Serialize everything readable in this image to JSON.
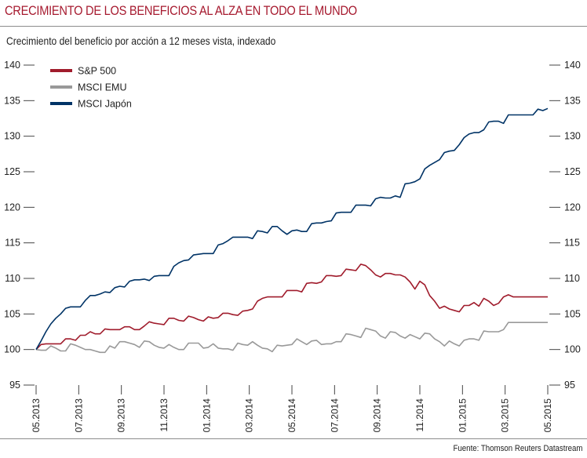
{
  "header": {
    "title": "CRECIMIENTO DE LOS BENEFICIOS AL ALZA EN TODO EL MUNDO",
    "subtitle": "Crecimiento del beneficio por acción a 12 meses vista, indexado"
  },
  "footer": {
    "source": "Fuente: Thomson Reuters Datastream"
  },
  "chart_data": {
    "type": "line",
    "title": "CRECIMIENTO DE LOS BENEFICIOS AL ALZA EN TODO EL MUNDO",
    "subtitle": "Crecimiento del beneficio por acción a 12 meses vista, indexado",
    "xlabel": "",
    "ylabel": "",
    "ylim": [
      95,
      140
    ],
    "yticks": [
      95,
      100,
      105,
      110,
      115,
      120,
      125,
      130,
      135,
      140
    ],
    "xticks": [
      "05.2013",
      "07.2013",
      "09.2013",
      "11.2013",
      "01.2014",
      "03.2014",
      "05.2014",
      "07.2014",
      "09.2014",
      "11.2014",
      "01.2015",
      "03.2015",
      "05.2015"
    ],
    "x_points_per_month": 4,
    "legend_position": "top-left",
    "grid": false,
    "series": [
      {
        "name": "S&P 500",
        "color": "#a01c2c",
        "values": [
          100,
          100.7,
          100.8,
          100.8,
          100.8,
          100.8,
          101.5,
          101.5,
          101.3,
          102,
          102,
          102.5,
          102.2,
          102.2,
          102.9,
          102.8,
          102.8,
          102.8,
          103.2,
          103.2,
          102.8,
          102.8,
          103.3,
          103.9,
          103.7,
          103.6,
          103.5,
          104.4,
          104.4,
          104.1,
          104,
          104.7,
          104.5,
          104.2,
          104,
          104.6,
          104.4,
          104.5,
          105.1,
          105.1,
          104.9,
          104.8,
          105.4,
          105.5,
          105.7,
          106.8,
          107.2,
          107.4,
          107.4,
          107.4,
          107.4,
          108.3,
          108.3,
          108.3,
          108.1,
          109.3,
          109.4,
          109.3,
          109.5,
          110.4,
          110.4,
          110.3,
          110.4,
          111.3,
          111.2,
          111.1,
          112,
          111.8,
          111.2,
          110.5,
          110.2,
          110.7,
          110.7,
          110.5,
          110.5,
          110.2,
          109.5,
          108.5,
          109.6,
          109.1,
          107.6,
          106.8,
          105.8,
          106.1,
          105.7,
          105.5,
          105.3,
          106.2,
          106.2,
          106.6,
          106.1,
          107.2,
          106.8,
          106.2,
          106.5,
          107.4,
          107.7,
          107.4
        ]
      },
      {
        "name": "MSCI EMU",
        "color": "#999999",
        "values": [
          100,
          99.9,
          99.9,
          100.5,
          100.2,
          99.8,
          99.8,
          100.8,
          100.6,
          100.3,
          100,
          100,
          99.8,
          99.6,
          99.6,
          100.5,
          100.2,
          101.1,
          101.1,
          100.9,
          100.7,
          100.3,
          101.2,
          101.1,
          100.6,
          100.3,
          100.2,
          100.7,
          100.3,
          100,
          100,
          100.9,
          100.9,
          100.9,
          100.2,
          100.3,
          100.8,
          100.2,
          100.1,
          100.1,
          99.9,
          100.9,
          100.7,
          100.6,
          101.1,
          100.6,
          100.2,
          100.1,
          99.7,
          100.6,
          100.5,
          100.6,
          100.7,
          101.5,
          101.1,
          100.7,
          101.2,
          101.3,
          100.7,
          100.8,
          100.8,
          101.1,
          101.1,
          102.2,
          102.1,
          101.9,
          101.7,
          103,
          102.8,
          102.6,
          101.9,
          101.6,
          102.5,
          102.4,
          101.9,
          101.6,
          102.1,
          101.8,
          101.5,
          102.3,
          102.2,
          101.5,
          101.1,
          100.5,
          101.2,
          100.8,
          100.5,
          101.3,
          101.5,
          101.5,
          101.3,
          102.6,
          102.5,
          102.5,
          102.5,
          102.8,
          103.8,
          103.8
        ]
      },
      {
        "name": "MSCI Japón",
        "color": "#003366",
        "values": [
          100,
          101.2,
          102.5,
          103.6,
          104.4,
          105,
          105.8,
          106,
          106,
          106,
          106.9,
          107.6,
          107.6,
          107.8,
          108.1,
          108,
          108.7,
          108.9,
          108.8,
          109.6,
          109.8,
          109.8,
          109.9,
          109.7,
          110.3,
          110.4,
          110.4,
          110.4,
          111.7,
          112.2,
          112.5,
          112.6,
          113.3,
          113.4,
          113.5,
          113.5,
          113.5,
          114.7,
          114.9,
          115.3,
          115.8,
          115.8,
          115.8,
          115.8,
          115.6,
          116.7,
          116.6,
          116.4,
          117.3,
          117.3,
          116.7,
          116.2,
          116.7,
          116.8,
          116.6,
          116.6,
          117.7,
          117.8,
          117.8,
          118,
          118.1,
          119.2,
          119.3,
          119.3,
          119.3,
          120.3,
          120.3,
          120.3,
          120.2,
          121.2,
          121.4,
          121.3,
          121.3,
          121.6,
          121.4,
          123.3,
          123.4,
          123.6,
          124,
          125.4,
          125.9,
          126.3,
          126.7,
          127.7,
          127.9,
          128,
          128.8,
          129.8,
          130.3,
          130.5,
          130.5,
          130.9,
          132,
          132.1,
          132.1,
          131.8,
          133
        ]
      }
    ],
    "series_tail": {
      "japon_last": [
        133,
        133,
        133,
        133,
        133,
        133.8,
        133.6,
        133.9
      ]
    }
  }
}
